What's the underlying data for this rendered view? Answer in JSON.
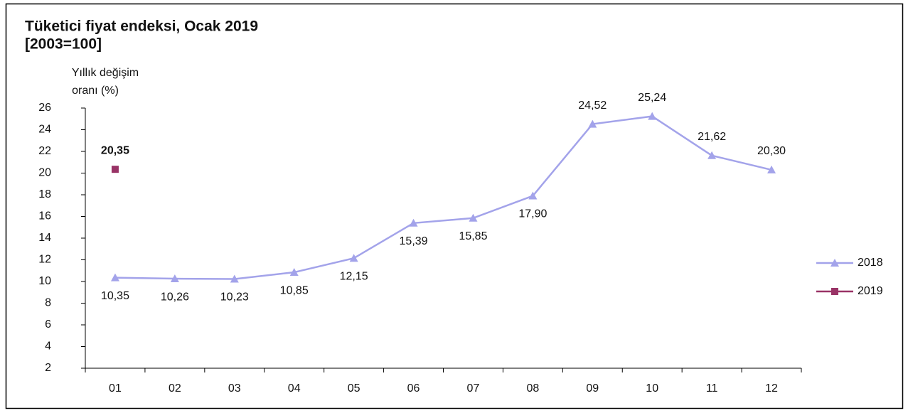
{
  "chart_data": {
    "type": "line",
    "title": "Tüketici fiyat endeksi, Ocak 2019",
    "subtitle": "[2003=100]",
    "ylabel": [
      "Yıllık değişim",
      "oranı (%)"
    ],
    "categories": [
      "01",
      "02",
      "03",
      "04",
      "05",
      "06",
      "07",
      "08",
      "09",
      "10",
      "11",
      "12"
    ],
    "series": [
      {
        "name": "2018",
        "color": "#a3a3ea",
        "marker": "triangle",
        "values": [
          10.35,
          10.26,
          10.23,
          10.85,
          12.15,
          15.39,
          15.85,
          17.9,
          24.52,
          25.24,
          21.62,
          20.3
        ],
        "value_labels": [
          "10,35",
          "10,26",
          "10,23",
          "10,85",
          "12,15",
          "15,39",
          "15,85",
          "17,90",
          "24,52",
          "25,24",
          "21,62",
          "20,30"
        ]
      },
      {
        "name": "2019",
        "color": "#993366",
        "marker": "square",
        "values": [
          20.35,
          null,
          null,
          null,
          null,
          null,
          null,
          null,
          null,
          null,
          null,
          null
        ],
        "value_labels": [
          "20,35",
          null,
          null,
          null,
          null,
          null,
          null,
          null,
          null,
          null,
          null,
          null
        ]
      }
    ],
    "ylim": [
      2,
      26
    ],
    "yticks": [
      2,
      4,
      6,
      8,
      10,
      12,
      14,
      16,
      18,
      20,
      22,
      24,
      26
    ],
    "legend": "right"
  }
}
